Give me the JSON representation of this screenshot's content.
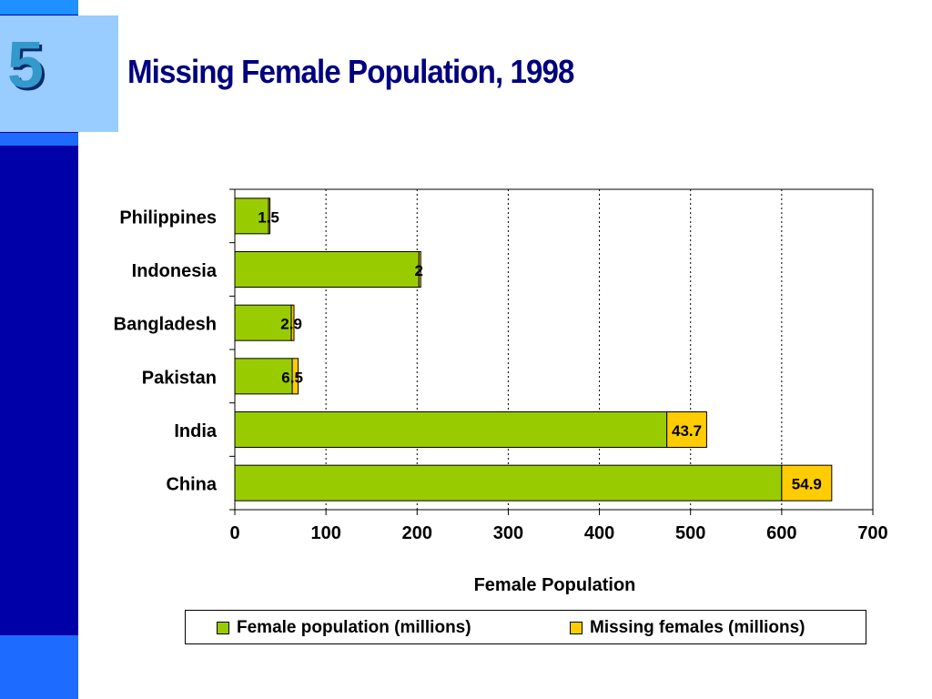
{
  "slide": {
    "number": "5",
    "title": "Missing Female Population, 1998"
  },
  "colors": {
    "female": "#99cc00",
    "missing": "#ffcc00",
    "title": "#000080"
  },
  "chart_data": {
    "type": "bar",
    "orientation": "horizontal",
    "stacked": true,
    "categories": [
      "Philippines",
      "Indonesia",
      "Bangladesh",
      "Pakistan",
      "India",
      "China"
    ],
    "series": [
      {
        "name": "Female population (millions)",
        "values": [
          37,
          202,
          62,
          63,
          474,
          600
        ]
      },
      {
        "name": "Missing females (millions)",
        "values": [
          1.5,
          2,
          2.9,
          6.5,
          43.7,
          54.9
        ]
      }
    ],
    "data_labels": [
      "1.5",
      "2",
      "2.9",
      "6.5",
      "43.7",
      "54.9"
    ],
    "xlabel": "Female Population",
    "ylabel": "",
    "xlim": [
      0,
      700
    ],
    "xticks": [
      "0",
      "100",
      "200",
      "300",
      "400",
      "500",
      "600",
      "700"
    ],
    "grid": "vertical dotted",
    "legend_position": "bottom"
  }
}
